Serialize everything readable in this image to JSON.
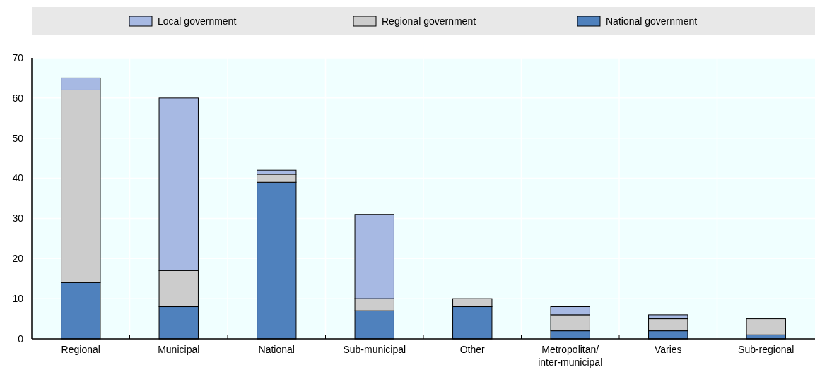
{
  "chart_data": {
    "type": "bar",
    "stacked": true,
    "categories": [
      "Regional",
      "Municipal",
      "National",
      "Sub-municipal",
      "Other",
      "Metropolitan/inter-municipal",
      "Varies",
      "Sub-regional"
    ],
    "series": [
      {
        "name": "National government",
        "color": "#4f81bd",
        "values": [
          14,
          8,
          39,
          7,
          8,
          2,
          2,
          1
        ]
      },
      {
        "name": "Regional government",
        "color": "#cccccc",
        "values": [
          48,
          9,
          2,
          3,
          2,
          4,
          3,
          4
        ]
      },
      {
        "name": "Local government",
        "color": "#a7b9e3",
        "values": [
          3,
          43,
          1,
          21,
          0,
          2,
          1,
          0
        ]
      }
    ],
    "ylim": [
      0,
      70
    ],
    "yticks": [
      0,
      10,
      20,
      30,
      40,
      50,
      60,
      70
    ],
    "grid": true,
    "legend": "top"
  }
}
